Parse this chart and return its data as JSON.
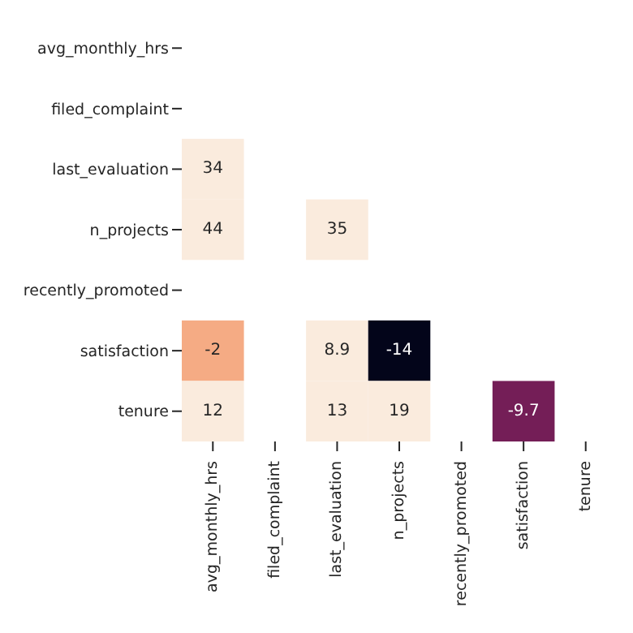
{
  "chart_data": {
    "type": "heatmap",
    "categories": [
      "avg_monthly_hrs",
      "filed_complaint",
      "last_evaluation",
      "n_projects",
      "recently_promoted",
      "satisfaction",
      "tenure"
    ],
    "y_categories": [
      "avg_monthly_hrs",
      "filed_complaint",
      "last_evaluation",
      "n_projects",
      "recently_promoted",
      "satisfaction",
      "tenure"
    ],
    "cells": [
      [
        null,
        null,
        null,
        null,
        null,
        null,
        null
      ],
      [
        null,
        null,
        null,
        null,
        null,
        null,
        null
      ],
      [
        34,
        null,
        null,
        null,
        null,
        null,
        null
      ],
      [
        44,
        null,
        35,
        null,
        null,
        null,
        null
      ],
      [
        null,
        null,
        null,
        null,
        null,
        null,
        null
      ],
      [
        -2,
        null,
        8.9,
        -14,
        null,
        null,
        null
      ],
      [
        12,
        null,
        13,
        19,
        null,
        -9.7,
        null
      ]
    ],
    "data_labels": true
  }
}
